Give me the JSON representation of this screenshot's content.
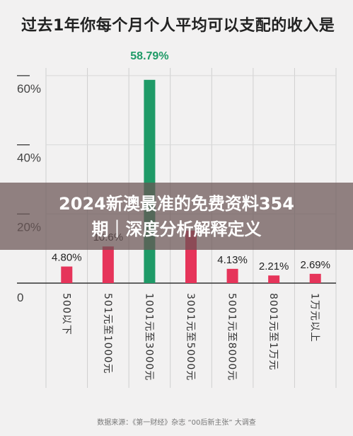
{
  "chart_data": {
    "type": "bar",
    "title": "过去1年你每个月个人平均可以支配的收入是",
    "categories": [
      "500以下",
      "501元至1000元",
      "1001元至3000元",
      "3001元至5000元",
      "5001元至8000元",
      "8001元至1万元",
      "1万元以上"
    ],
    "values": [
      4.8,
      10.6,
      58.79,
      15.2,
      4.13,
      2.21,
      2.69
    ],
    "data_labels": [
      "4.80%",
      "10.6%",
      "58.79%",
      "",
      "4.13%",
      "2.21%",
      "2.69%"
    ],
    "highlight_index": 2,
    "ylim": [
      0,
      60
    ],
    "y_ticks": [
      {
        "value": 0,
        "label": "0"
      },
      {
        "value": 20,
        "label": "20%"
      },
      {
        "value": 40,
        "label": "40%"
      },
      {
        "value": 60,
        "label": "60%"
      }
    ],
    "grid": true,
    "colors": {
      "bar": "#e6345a",
      "highlight": "#1f9a67",
      "highlight_label": "#1f9a67"
    }
  },
  "overlay": {
    "line1": "2024新澳最准的免费资料354",
    "line2": "期｜深度分析解释定义"
  },
  "source": "数据来源：《第一财经》杂志 “00后新主张” 大调查"
}
